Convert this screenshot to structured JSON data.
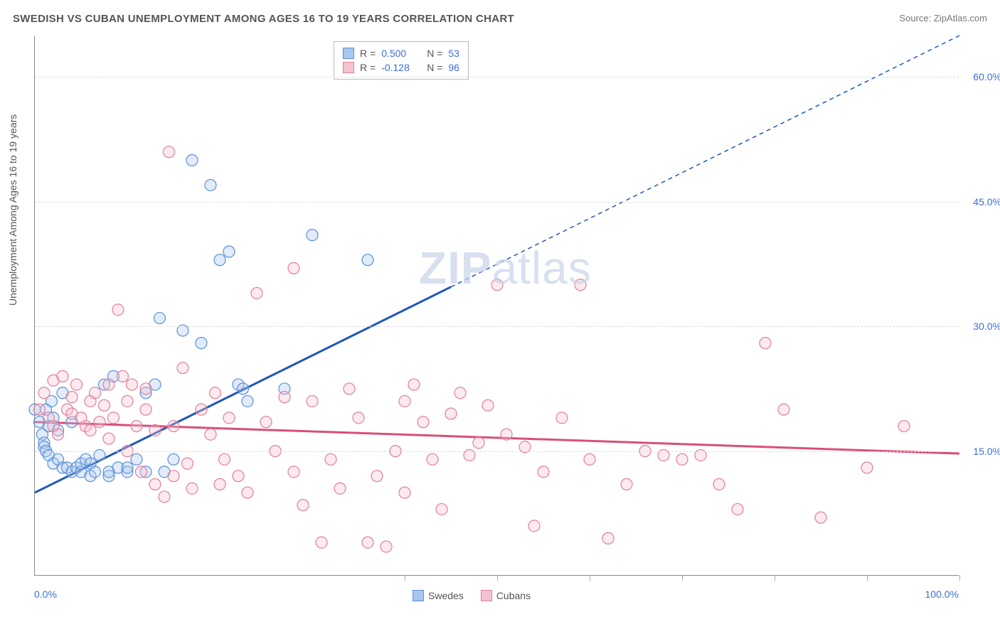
{
  "title": "SWEDISH VS CUBAN UNEMPLOYMENT AMONG AGES 16 TO 19 YEARS CORRELATION CHART",
  "source_label": "Source:",
  "source_name": "ZipAtlas.com",
  "ylabel": "Unemployment Among Ages 16 to 19 years",
  "watermark_a": "ZIP",
  "watermark_b": "atlas",
  "chart": {
    "type": "scatter",
    "xlim": [
      0,
      100
    ],
    "ylim": [
      0,
      65
    ],
    "x_min_label": "0.0%",
    "x_max_label": "100.0%",
    "ytick_values": [
      15,
      30,
      45,
      60
    ],
    "ytick_labels": [
      "15.0%",
      "30.0%",
      "45.0%",
      "60.0%"
    ],
    "xtick_values": [
      40,
      50,
      60,
      70,
      80,
      90,
      100
    ],
    "background_color": "#ffffff",
    "grid_color": "#dddddd",
    "axis_color": "#888888",
    "marker_radius": 8,
    "series": [
      {
        "name": "Swedes",
        "fill": "#a9c7ee",
        "stroke": "#5a8fd8",
        "R": "0.500",
        "N": "53",
        "trend": {
          "slope": 0.55,
          "intercept": 10,
          "color": "#1f57b8",
          "dash_after_x": 45
        },
        "points": [
          [
            0,
            20
          ],
          [
            0.5,
            18.5
          ],
          [
            0.8,
            17
          ],
          [
            1,
            16
          ],
          [
            1,
            15.5
          ],
          [
            1.2,
            15
          ],
          [
            1.2,
            20
          ],
          [
            1.5,
            18
          ],
          [
            1.5,
            14.5
          ],
          [
            1.8,
            21
          ],
          [
            2,
            13.5
          ],
          [
            2,
            19
          ],
          [
            2.5,
            14
          ],
          [
            2.5,
            17.5
          ],
          [
            3,
            13
          ],
          [
            3,
            22
          ],
          [
            3.5,
            13
          ],
          [
            4,
            12.5
          ],
          [
            4,
            18.5
          ],
          [
            4.5,
            13
          ],
          [
            5,
            12.5
          ],
          [
            5,
            13.5
          ],
          [
            5.5,
            14
          ],
          [
            6,
            12
          ],
          [
            6,
            13.5
          ],
          [
            6.5,
            12.5
          ],
          [
            7,
            14.5
          ],
          [
            7.5,
            23
          ],
          [
            8,
            12
          ],
          [
            8,
            12.5
          ],
          [
            8.5,
            24
          ],
          [
            9,
            13
          ],
          [
            10,
            12.5
          ],
          [
            10,
            13
          ],
          [
            11,
            14
          ],
          [
            12,
            12.5
          ],
          [
            12,
            22
          ],
          [
            13,
            23
          ],
          [
            13.5,
            31
          ],
          [
            14,
            12.5
          ],
          [
            15,
            14
          ],
          [
            16,
            29.5
          ],
          [
            17,
            50
          ],
          [
            18,
            28
          ],
          [
            19,
            47
          ],
          [
            20,
            38
          ],
          [
            21,
            39
          ],
          [
            22,
            23
          ],
          [
            22.5,
            22.5
          ],
          [
            23,
            21
          ],
          [
            27,
            22.5
          ],
          [
            30,
            41
          ],
          [
            36,
            38
          ]
        ]
      },
      {
        "name": "Cubans",
        "fill": "#f5c2cf",
        "stroke": "#e07f9b",
        "R": "-0.128",
        "N": "96",
        "trend": {
          "slope": -0.038,
          "intercept": 18.5,
          "color": "#d94f7a",
          "dash_after_x": 999
        },
        "points": [
          [
            0.5,
            20
          ],
          [
            1,
            22
          ],
          [
            1.5,
            19
          ],
          [
            2,
            23.5
          ],
          [
            2,
            18
          ],
          [
            2.5,
            17
          ],
          [
            3,
            24
          ],
          [
            3.5,
            20
          ],
          [
            4,
            19.5
          ],
          [
            4,
            21.5
          ],
          [
            4.5,
            23
          ],
          [
            5,
            19
          ],
          [
            5.5,
            18
          ],
          [
            6,
            17.5
          ],
          [
            6,
            21
          ],
          [
            6.5,
            22
          ],
          [
            7,
            18.5
          ],
          [
            7.5,
            20.5
          ],
          [
            8,
            16.5
          ],
          [
            8,
            23
          ],
          [
            8.5,
            19
          ],
          [
            9,
            32
          ],
          [
            9.5,
            24
          ],
          [
            10,
            21
          ],
          [
            10,
            15
          ],
          [
            10.5,
            23
          ],
          [
            11,
            18
          ],
          [
            11.5,
            12.5
          ],
          [
            12,
            20
          ],
          [
            12,
            22.5
          ],
          [
            13,
            17.5
          ],
          [
            13,
            11
          ],
          [
            14,
            9.5
          ],
          [
            14.5,
            51
          ],
          [
            15,
            18
          ],
          [
            15,
            12
          ],
          [
            16,
            25
          ],
          [
            16.5,
            13.5
          ],
          [
            17,
            10.5
          ],
          [
            18,
            20
          ],
          [
            19,
            17
          ],
          [
            19.5,
            22
          ],
          [
            20,
            11
          ],
          [
            20.5,
            14
          ],
          [
            21,
            19
          ],
          [
            22,
            12
          ],
          [
            23,
            10
          ],
          [
            24,
            34
          ],
          [
            25,
            18.5
          ],
          [
            26,
            15
          ],
          [
            27,
            21.5
          ],
          [
            28,
            37
          ],
          [
            28,
            12.5
          ],
          [
            29,
            8.5
          ],
          [
            30,
            21
          ],
          [
            31,
            4
          ],
          [
            32,
            14
          ],
          [
            33,
            10.5
          ],
          [
            34,
            22.5
          ],
          [
            35,
            19
          ],
          [
            36,
            4
          ],
          [
            37,
            12
          ],
          [
            38,
            3.5
          ],
          [
            39,
            15
          ],
          [
            40,
            21
          ],
          [
            40,
            10
          ],
          [
            41,
            23
          ],
          [
            42,
            18.5
          ],
          [
            43,
            14
          ],
          [
            44,
            8
          ],
          [
            45,
            19.5
          ],
          [
            46,
            22
          ],
          [
            47,
            14.5
          ],
          [
            48,
            16
          ],
          [
            49,
            20.5
          ],
          [
            50,
            35
          ],
          [
            51,
            17
          ],
          [
            53,
            15.5
          ],
          [
            54,
            6
          ],
          [
            55,
            12.5
          ],
          [
            57,
            19
          ],
          [
            59,
            35
          ],
          [
            60,
            14
          ],
          [
            62,
            4.5
          ],
          [
            64,
            11
          ],
          [
            66,
            15
          ],
          [
            68,
            14.5
          ],
          [
            70,
            14
          ],
          [
            72,
            14.5
          ],
          [
            74,
            11
          ],
          [
            76,
            8
          ],
          [
            79,
            28
          ],
          [
            81,
            20
          ],
          [
            85,
            7
          ],
          [
            90,
            13
          ],
          [
            94,
            18
          ]
        ]
      }
    ]
  },
  "legend_stats_prefix_R": "R =",
  "legend_stats_prefix_N": "N ="
}
